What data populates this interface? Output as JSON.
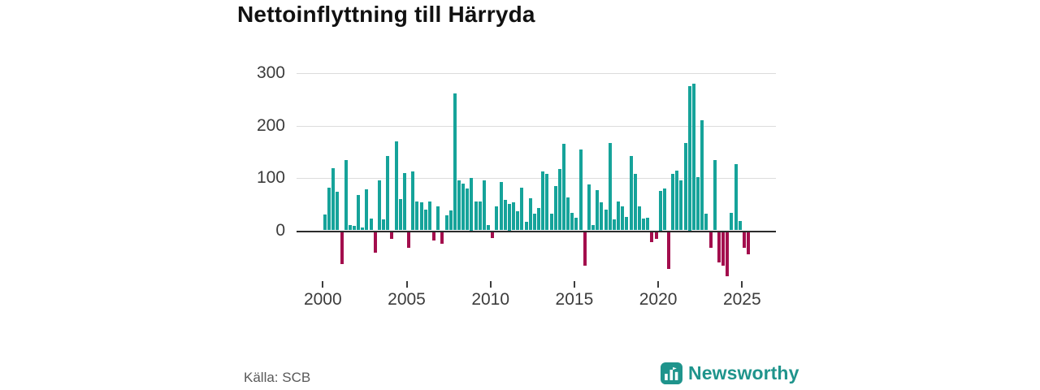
{
  "chart": {
    "title": "Nettoinflyttning till Härryda",
    "source": "Källa: SCB"
  },
  "branding": {
    "logo_text": "Newsworthy",
    "brand_color": "#1f948c"
  },
  "colors": {
    "positive_bar": "#16a39a",
    "negative_bar": "#a30e4d",
    "axis_line": "#2b2b2b",
    "gridline": "#dcdcdc",
    "tick_label": "#3c3c3c"
  },
  "chart_data": {
    "type": "bar",
    "title": "Nettoinflyttning till Härryda",
    "periodicity": "quarterly",
    "x_tick_labels": [
      "2000",
      "2005",
      "2010",
      "2015",
      "2020",
      "2025"
    ],
    "y_ticks": [
      0,
      100,
      200,
      300
    ],
    "ylim": [
      -100,
      320
    ],
    "grid": "horizontal",
    "positive_color": "#16a39a",
    "negative_color": "#a30e4d",
    "quarters": [
      "2000Q1",
      "2000Q2",
      "2000Q3",
      "2000Q4",
      "2001Q1",
      "2001Q2",
      "2001Q3",
      "2001Q4",
      "2002Q1",
      "2002Q2",
      "2002Q3",
      "2002Q4",
      "2003Q1",
      "2003Q2",
      "2003Q3",
      "2003Q4",
      "2004Q1",
      "2004Q2",
      "2004Q3",
      "2004Q4",
      "2005Q1",
      "2005Q2",
      "2005Q3",
      "2005Q4",
      "2006Q1",
      "2006Q2",
      "2006Q3",
      "2006Q4",
      "2007Q1",
      "2007Q2",
      "2007Q3",
      "2007Q4",
      "2008Q1",
      "2008Q2",
      "2008Q3",
      "2008Q4",
      "2009Q1",
      "2009Q2",
      "2009Q3",
      "2009Q4",
      "2010Q1",
      "2010Q2",
      "2010Q3",
      "2010Q4",
      "2011Q1",
      "2011Q2",
      "2011Q3",
      "2011Q4",
      "2012Q1",
      "2012Q2",
      "2012Q3",
      "2012Q4",
      "2013Q1",
      "2013Q2",
      "2013Q3",
      "2013Q4",
      "2014Q1",
      "2014Q2",
      "2014Q3",
      "2014Q4",
      "2015Q1",
      "2015Q2",
      "2015Q3",
      "2015Q4",
      "2016Q1",
      "2016Q2",
      "2016Q3",
      "2016Q4",
      "2017Q1",
      "2017Q2",
      "2017Q3",
      "2017Q4",
      "2018Q1",
      "2018Q2",
      "2018Q3",
      "2018Q4",
      "2019Q1",
      "2019Q2",
      "2019Q3",
      "2019Q4",
      "2020Q1",
      "2020Q2",
      "2020Q3",
      "2020Q4",
      "2021Q1",
      "2021Q2",
      "2021Q3",
      "2021Q4",
      "2022Q1",
      "2022Q2",
      "2022Q3",
      "2022Q4",
      "2023Q1",
      "2023Q2",
      "2023Q3",
      "2023Q4",
      "2024Q1",
      "2024Q2",
      "2024Q3",
      "2024Q4",
      "2025Q1",
      "2025Q2"
    ],
    "values": [
      30,
      82,
      118,
      73,
      -60,
      134,
      10,
      9,
      68,
      5,
      79,
      22,
      -38,
      95,
      21,
      142,
      -13,
      170,
      59,
      110,
      -30,
      113,
      55,
      53,
      40,
      55,
      -16,
      45,
      -21,
      29,
      38,
      262,
      95,
      89,
      80,
      100,
      55,
      55,
      96,
      10,
      -11,
      45,
      92,
      58,
      50,
      53,
      37,
      82,
      16,
      61,
      32,
      42,
      113,
      108,
      32,
      85,
      117,
      165,
      63,
      34,
      24,
      155,
      -63,
      87,
      10,
      76,
      53,
      40,
      167,
      21,
      55,
      45,
      26,
      142,
      108,
      45,
      22,
      24,
      -18,
      -12,
      75,
      80,
      -70,
      108,
      114,
      95,
      167,
      275,
      280,
      102,
      210,
      32,
      -30,
      134,
      -58,
      -64,
      -83,
      34,
      126,
      18,
      -29,
      -42
    ]
  }
}
